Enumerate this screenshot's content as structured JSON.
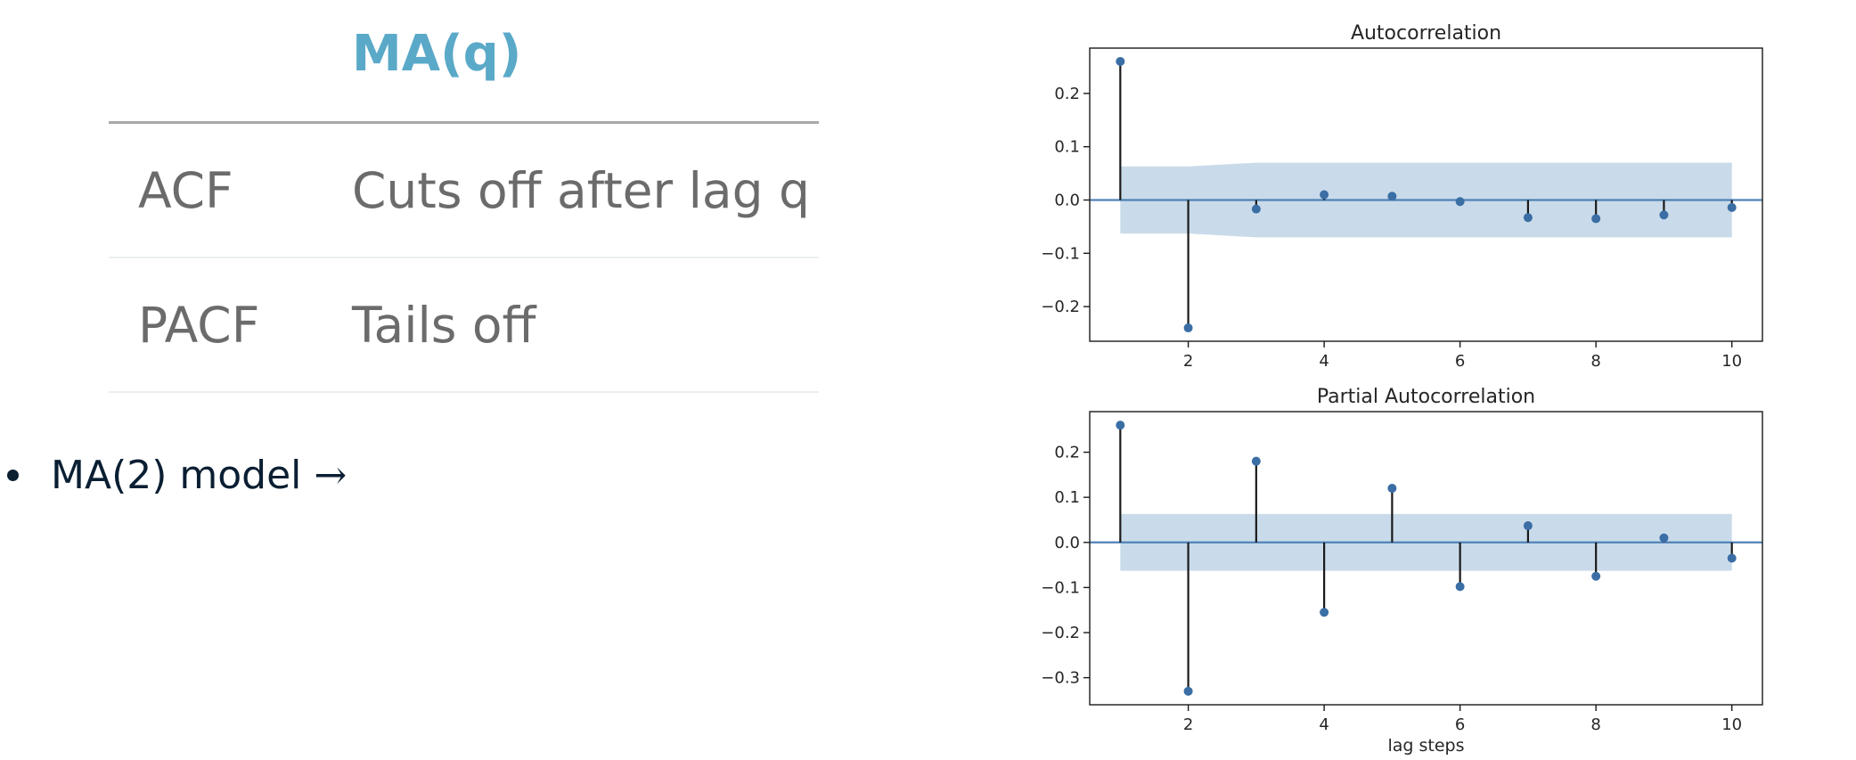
{
  "table": {
    "header": "MA(q)",
    "rows": [
      {
        "label": "ACF",
        "value": "Cuts off after lag q"
      },
      {
        "label": "PACF",
        "value": "Tails off"
      }
    ]
  },
  "bullet": {
    "text": "MA(2) model",
    "arrow": "→"
  },
  "colors": {
    "header_accent": "#5aa9c8",
    "marker": "#3a6ea5",
    "zero_line": "#4f82b8",
    "confidence_band": "#c9dbea",
    "stem": "#1a1a1a"
  },
  "chart_data": [
    {
      "type": "stem",
      "title": "Autocorrelation",
      "xlabel": "",
      "x": [
        1,
        2,
        3,
        4,
        5,
        6,
        7,
        8,
        9,
        10
      ],
      "values": [
        0.26,
        -0.24,
        -0.017,
        0.01,
        0.007,
        -0.003,
        -0.033,
        -0.035,
        -0.028,
        -0.014
      ],
      "confidence_band": {
        "x": [
          1,
          2,
          3,
          10
        ],
        "upper": [
          0.063,
          0.063,
          0.07,
          0.07
        ],
        "lower": [
          -0.063,
          -0.063,
          -0.07,
          -0.07
        ]
      },
      "xlim": [
        0.55,
        10.45
      ],
      "ylim": [
        -0.265,
        0.285
      ],
      "xticks": [
        2,
        4,
        6,
        8,
        10
      ],
      "yticks": [
        -0.2,
        -0.1,
        0.0,
        0.1,
        0.2
      ],
      "ytick_labels": [
        "−0.2",
        "−0.1",
        "0.0",
        "0.1",
        "0.2"
      ],
      "grid": false
    },
    {
      "type": "stem",
      "title": "Partial Autocorrelation",
      "xlabel": "lag steps",
      "x": [
        1,
        2,
        3,
        4,
        5,
        6,
        7,
        8,
        9,
        10
      ],
      "values": [
        0.26,
        -0.33,
        0.18,
        -0.155,
        0.12,
        -0.098,
        0.037,
        -0.075,
        0.01,
        -0.035
      ],
      "confidence_band": {
        "x": [
          1,
          10
        ],
        "upper": [
          0.063,
          0.063
        ],
        "lower": [
          -0.063,
          -0.063
        ]
      },
      "xlim": [
        0.55,
        10.45
      ],
      "ylim": [
        -0.36,
        0.29
      ],
      "xticks": [
        2,
        4,
        6,
        8,
        10
      ],
      "yticks": [
        -0.3,
        -0.2,
        -0.1,
        0.0,
        0.1,
        0.2
      ],
      "ytick_labels": [
        "−0.3",
        "−0.2",
        "−0.1",
        "0.0",
        "0.1",
        "0.2"
      ],
      "grid": false
    }
  ]
}
